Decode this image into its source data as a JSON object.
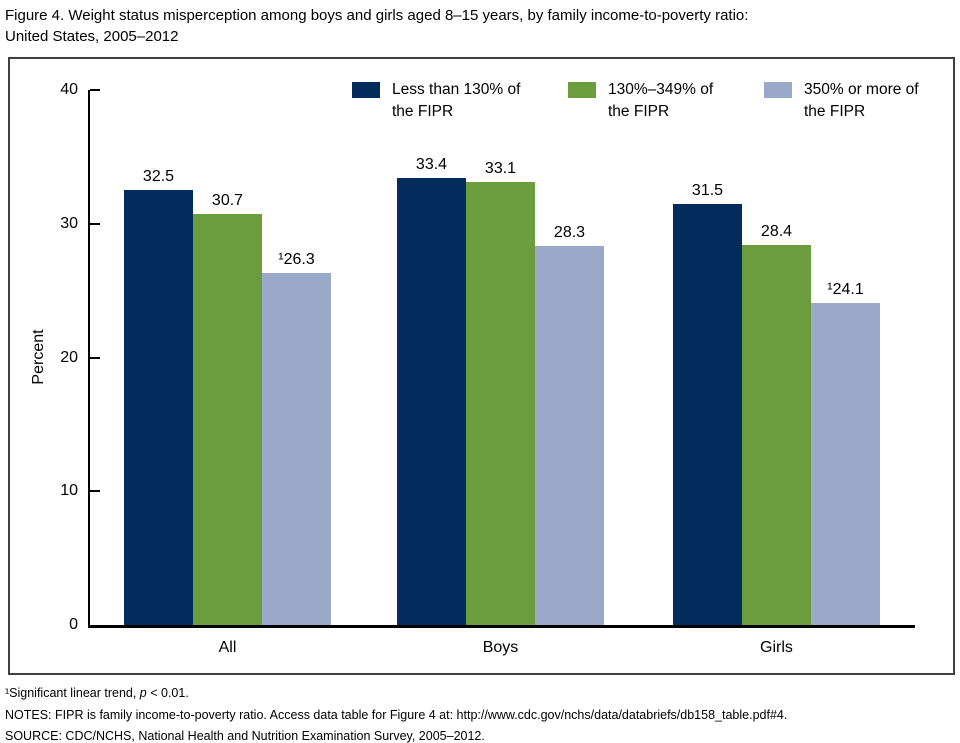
{
  "title": {
    "line1": "Figure 4. Weight status misperception among boys and girls aged 8–15 years, by family income-to-poverty ratio:",
    "line2": "United States, 2005–2012"
  },
  "colors": {
    "navy": "#032b5c",
    "green": "#6b9d3f",
    "light_blue": "#9aa9c9",
    "axis": "#000000",
    "box_border": "#3f3f3f"
  },
  "chart_data": {
    "type": "bar",
    "title": "Figure 4. Weight status misperception among boys and girls aged 8–15 years, by family income-to-poverty ratio: United States, 2005–2012",
    "categories": [
      "All",
      "Boys",
      "Girls"
    ],
    "series": [
      {
        "name": "Less than 130% of the FIPR",
        "color": "#032b5c",
        "values": [
          32.5,
          33.4,
          31.5
        ],
        "labels": [
          "32.5",
          "33.4",
          "31.5"
        ]
      },
      {
        "name": "130%–349% of the FIPR",
        "color": "#6b9d3f",
        "values": [
          30.7,
          33.1,
          28.4
        ],
        "labels": [
          "30.7",
          "33.1",
          "28.4"
        ]
      },
      {
        "name": "350% or more of the FIPR",
        "color": "#9aa9c9",
        "values": [
          26.3,
          28.3,
          24.1
        ],
        "labels": [
          "¹26.3",
          "28.3",
          "¹24.1"
        ]
      }
    ],
    "xlabel": "",
    "ylabel": "Percent",
    "yticks": [
      0,
      10,
      20,
      30,
      40
    ],
    "ylim": [
      0,
      40
    ],
    "grid": false,
    "legend_position": "top"
  },
  "legend": {
    "items": [
      {
        "label_line1": "Less than 130% of",
        "label_line2": "the FIPR",
        "color": "#032b5c"
      },
      {
        "label_line1": "130%–349% of",
        "label_line2": "the FIPR",
        "color": "#6b9d3f"
      },
      {
        "label_line1": "350% or more of",
        "label_line2": "the FIPR",
        "color": "#9aa9c9"
      }
    ]
  },
  "footnotes": {
    "note1": {
      "pre": "¹Significant linear trend, ",
      "italic": "p",
      "post": " < 0.01."
    },
    "note2": "NOTES: FIPR is family income-to-poverty ratio. Access data table for Figure 4 at: http://www.cdc.gov/nchs/data/databriefs/db158_table.pdf#4.",
    "note3": "SOURCE: CDC/NCHS, National Health and Nutrition Examination Survey, 2005–2012."
  }
}
